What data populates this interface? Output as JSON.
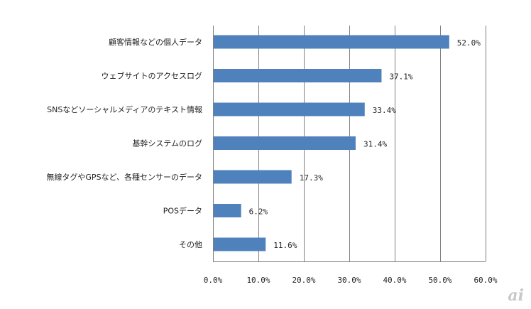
{
  "chart_data": {
    "type": "bar",
    "orientation": "horizontal",
    "categories": [
      "顧客情報などの個人データ",
      "ウェブサイトのアクセスログ",
      "SNSなどソーシャルメディアのテキスト情報",
      "基幹システムのログ",
      "無線タグやGPSなど、各種センサーのデータ",
      "POSデータ",
      "その他"
    ],
    "values": [
      52.0,
      37.1,
      33.4,
      31.4,
      17.3,
      6.2,
      11.6
    ],
    "value_labels": [
      "52.0%",
      "37.1%",
      "33.4%",
      "31.4%",
      "17.3%",
      "6.2%",
      "11.6%"
    ],
    "xlim": [
      0,
      60
    ],
    "x_ticks": [
      0,
      10,
      20,
      30,
      40,
      50,
      60
    ],
    "x_tick_labels": [
      "0.0%",
      "10.0%",
      "20.0%",
      "30.0%",
      "40.0%",
      "50.0%",
      "60.0%"
    ],
    "grid": "vertical",
    "bar_color": "#4f81bd",
    "grid_color": "#808080"
  },
  "logo": {
    "text": "ai",
    "color": "#c8c8c8"
  }
}
